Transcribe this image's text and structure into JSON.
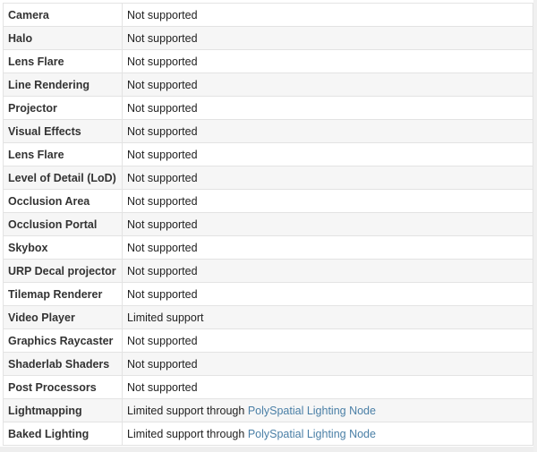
{
  "rows": [
    {
      "feature": "Camera",
      "support": "Not supported"
    },
    {
      "feature": "Halo",
      "support": "Not supported"
    },
    {
      "feature": "Lens Flare",
      "support": "Not supported"
    },
    {
      "feature": "Line Rendering",
      "support": "Not supported"
    },
    {
      "feature": "Projector",
      "support": "Not supported"
    },
    {
      "feature": "Visual Effects",
      "support": "Not supported"
    },
    {
      "feature": "Lens Flare",
      "support": "Not supported"
    },
    {
      "feature": "Level of Detail (LoD)",
      "support": "Not supported"
    },
    {
      "feature": "Occlusion Area",
      "support": "Not supported"
    },
    {
      "feature": "Occlusion Portal",
      "support": "Not supported"
    },
    {
      "feature": "Skybox",
      "support": "Not supported"
    },
    {
      "feature": "URP Decal projector",
      "support": "Not supported"
    },
    {
      "feature": "Tilemap Renderer",
      "support": "Not supported"
    },
    {
      "feature": "Video Player",
      "support": "Limited support"
    },
    {
      "feature": "Graphics Raycaster",
      "support": "Not supported"
    },
    {
      "feature": "Shaderlab Shaders",
      "support": "Not supported"
    },
    {
      "feature": "Post Processors",
      "support": "Not supported"
    },
    {
      "feature": "Lightmapping",
      "support": "Limited support through ",
      "link": "PolySpatial Lighting Node"
    },
    {
      "feature": "Baked Lighting",
      "support": "Limited support through ",
      "link": "PolySpatial Lighting Node"
    }
  ],
  "colors": {
    "link": "#4a7fa6",
    "stripe": "#f6f6f6",
    "border": "#e3e3e3"
  }
}
